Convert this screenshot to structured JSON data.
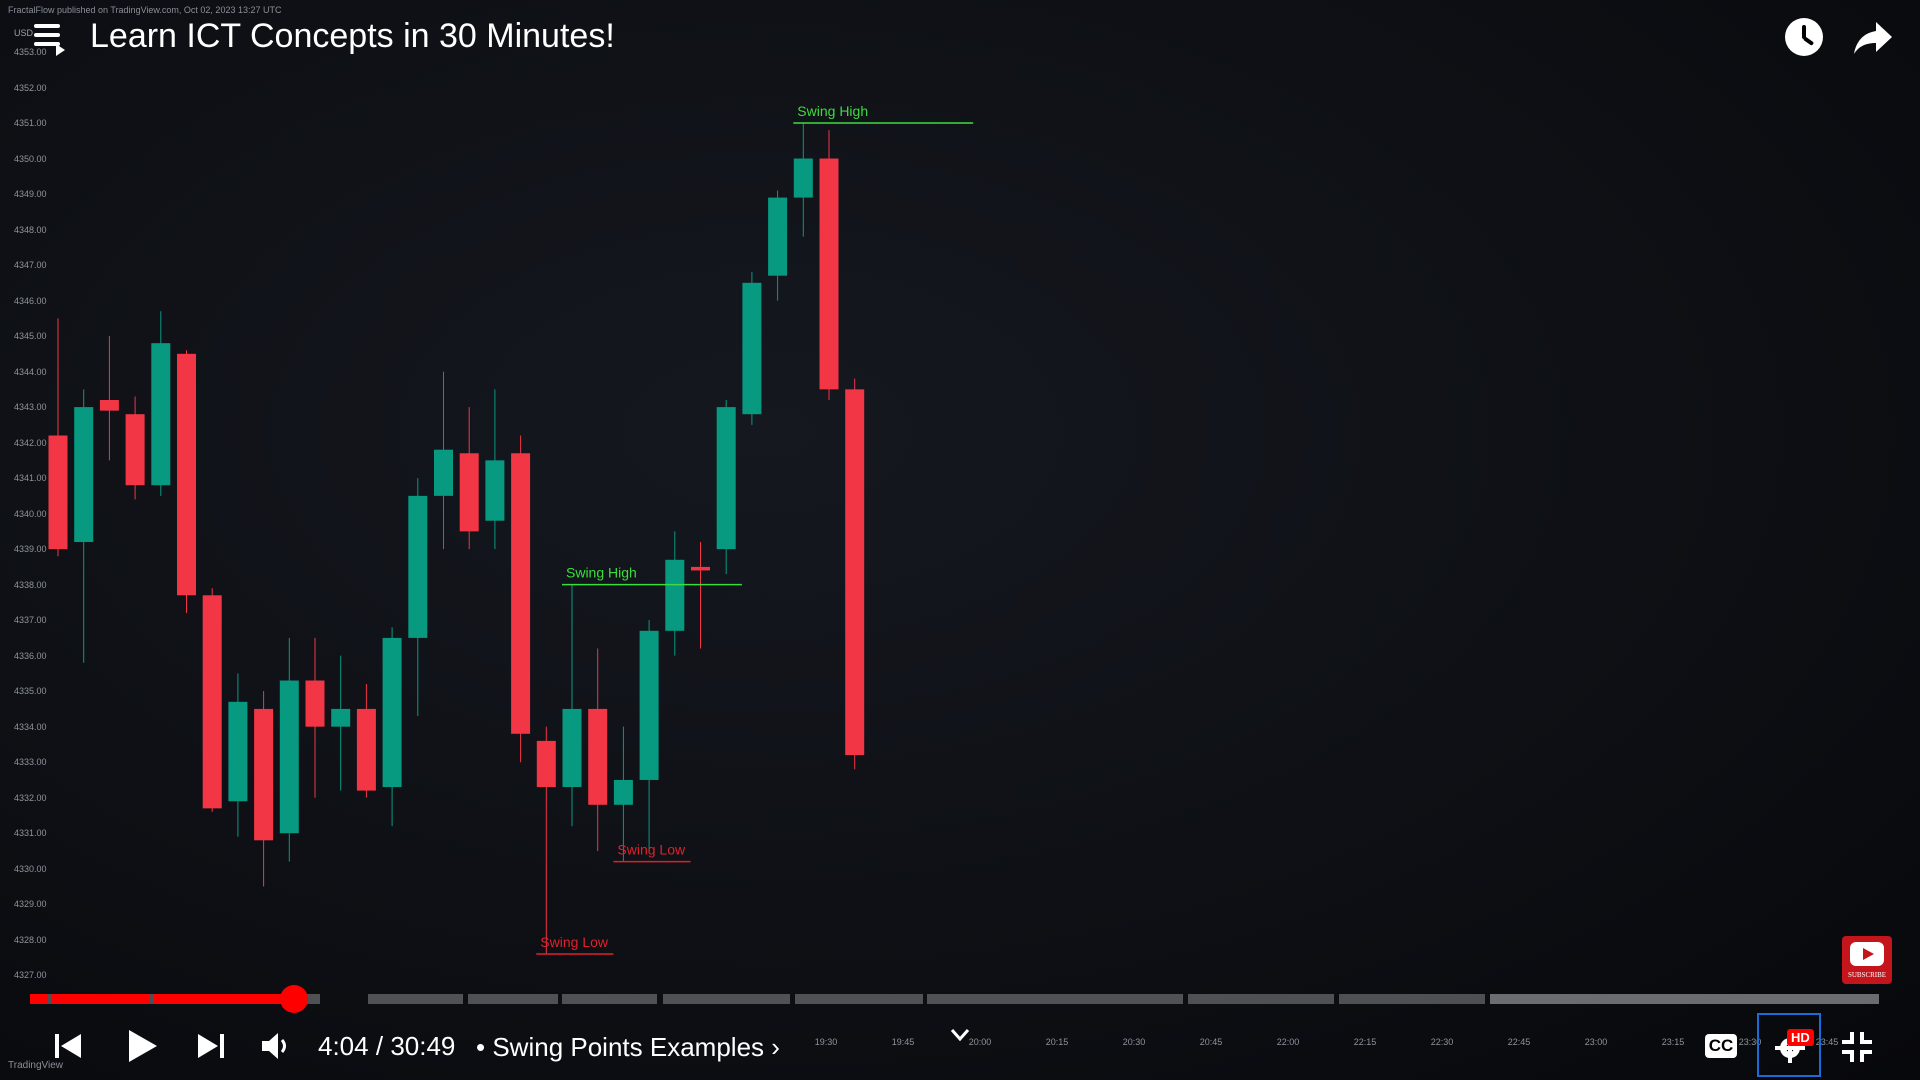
{
  "overlay": {
    "attribution": "FractalFlow published on TradingView.com, Oct 02, 2023 13:27 UTC",
    "symbol": "USD",
    "tradingview_logo": "TradingView"
  },
  "header": {
    "menu_icon": "menu-playlist-icon",
    "title": "Learn ICT Concepts in 30 Minutes!",
    "watch_later_icon": "clock-icon",
    "share_icon": "share-icon"
  },
  "subscribe": {
    "label": "SUBSCRIBE",
    "color": "#c4151c"
  },
  "controls": {
    "current_time": "4:04",
    "separator": "/",
    "duration": "30:49",
    "chapter_bullet": "•",
    "chapter": "Swing Points Examples",
    "chapter_arrow": "›",
    "cc_label": "CC",
    "hd_label": "HD",
    "progress_fraction": 0.132,
    "accent": "#ff0000"
  },
  "chart_data": {
    "type": "candlestick",
    "y_ticks": [
      "4353.00",
      "4352.00",
      "4351.00",
      "4350.00",
      "4349.00",
      "4348.00",
      "4347.00",
      "4346.00",
      "4345.00",
      "4344.00",
      "4343.00",
      "4342.00",
      "4341.00",
      "4340.00",
      "4339.00",
      "4338.00",
      "4337.00",
      "4336.00",
      "4335.00",
      "4334.00",
      "4333.00",
      "4332.00",
      "4331.00",
      "4330.00",
      "4329.00",
      "4328.00",
      "4327.00"
    ],
    "x_ticks": [
      "19:30",
      "19:45",
      "20:00",
      "20:15",
      "20:30",
      "20:45",
      "22:00",
      "22:15",
      "22:30",
      "22:45",
      "23:00",
      "23:15",
      "23:30",
      "23:45"
    ],
    "ylim": [
      4326.5,
      4353.0
    ],
    "colors": {
      "up": "#089981",
      "down": "#f23645",
      "swing_high": "#3ddc3d",
      "swing_low": "#e0202a"
    },
    "candles": [
      {
        "o": 4342.2,
        "h": 4345.5,
        "l": 4338.8,
        "c": 4339.0
      },
      {
        "o": 4339.2,
        "h": 4343.5,
        "l": 4335.8,
        "c": 4343.0
      },
      {
        "o": 4343.2,
        "h": 4345.0,
        "l": 4341.5,
        "c": 4342.9
      },
      {
        "o": 4342.8,
        "h": 4343.3,
        "l": 4340.4,
        "c": 4340.8
      },
      {
        "o": 4340.8,
        "h": 4345.7,
        "l": 4340.5,
        "c": 4344.8
      },
      {
        "o": 4344.5,
        "h": 4344.6,
        "l": 4337.2,
        "c": 4337.7
      },
      {
        "o": 4337.7,
        "h": 4337.9,
        "l": 4331.6,
        "c": 4331.7
      },
      {
        "o": 4331.9,
        "h": 4335.5,
        "l": 4330.9,
        "c": 4334.7
      },
      {
        "o": 4334.5,
        "h": 4335.0,
        "l": 4329.5,
        "c": 4330.8
      },
      {
        "o": 4331.0,
        "h": 4336.5,
        "l": 4330.2,
        "c": 4335.3
      },
      {
        "o": 4335.3,
        "h": 4336.5,
        "l": 4332.0,
        "c": 4334.0
      },
      {
        "o": 4334.0,
        "h": 4336.0,
        "l": 4332.2,
        "c": 4334.5
      },
      {
        "o": 4334.5,
        "h": 4335.2,
        "l": 4332.0,
        "c": 4332.2
      },
      {
        "o": 4332.3,
        "h": 4336.8,
        "l": 4331.2,
        "c": 4336.5
      },
      {
        "o": 4336.5,
        "h": 4341.0,
        "l": 4334.3,
        "c": 4340.5
      },
      {
        "o": 4340.5,
        "h": 4344.0,
        "l": 4339.0,
        "c": 4341.8
      },
      {
        "o": 4341.7,
        "h": 4343.0,
        "l": 4339.0,
        "c": 4339.5
      },
      {
        "o": 4339.8,
        "h": 4343.5,
        "l": 4339.0,
        "c": 4341.5
      },
      {
        "o": 4341.7,
        "h": 4342.2,
        "l": 4333.0,
        "c": 4333.8
      },
      {
        "o": 4333.6,
        "h": 4334.0,
        "l": 4327.6,
        "c": 4332.3
      },
      {
        "o": 4332.3,
        "h": 4338.0,
        "l": 4331.2,
        "c": 4334.5
      },
      {
        "o": 4334.5,
        "h": 4336.2,
        "l": 4330.5,
        "c": 4331.8
      },
      {
        "o": 4331.8,
        "h": 4334.0,
        "l": 4330.2,
        "c": 4332.5
      },
      {
        "o": 4332.5,
        "h": 4337.0,
        "l": 4330.5,
        "c": 4336.7
      },
      {
        "o": 4336.7,
        "h": 4339.5,
        "l": 4336.0,
        "c": 4338.7
      },
      {
        "o": 4338.5,
        "h": 4339.2,
        "l": 4336.2,
        "c": 4338.4
      },
      {
        "o": 4339.0,
        "h": 4343.2,
        "l": 4338.3,
        "c": 4343.0
      },
      {
        "o": 4342.8,
        "h": 4346.8,
        "l": 4342.5,
        "c": 4346.5
      },
      {
        "o": 4346.7,
        "h": 4349.1,
        "l": 4346.0,
        "c": 4348.9
      },
      {
        "o": 4348.9,
        "h": 4351.0,
        "l": 4347.8,
        "c": 4350.0
      },
      {
        "o": 4350.0,
        "h": 4350.8,
        "l": 4343.2,
        "c": 4343.5
      },
      {
        "o": 4343.5,
        "h": 4343.8,
        "l": 4332.8,
        "c": 4333.2
      }
    ],
    "annotations": [
      {
        "label": "Swing High",
        "kind": "high",
        "price": 4351.0,
        "from": 29,
        "to": 36
      },
      {
        "label": "Swing High",
        "kind": "high",
        "price": 4338.0,
        "from": 20,
        "to": 27
      },
      {
        "label": "Swing Low",
        "kind": "low",
        "price": 4330.2,
        "from": 22,
        "to": 25
      },
      {
        "label": "Swing Low",
        "kind": "low",
        "price": 4327.6,
        "from": 19,
        "to": 22
      }
    ]
  }
}
